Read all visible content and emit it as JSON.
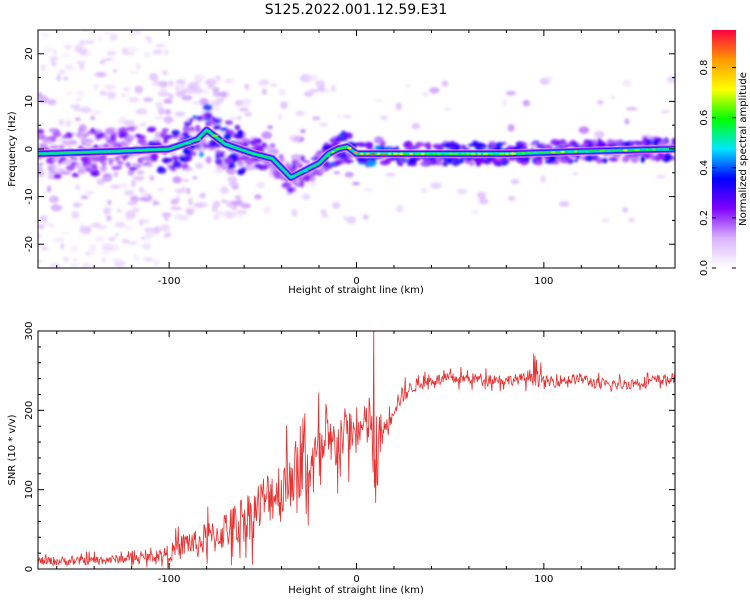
{
  "title": "S125.2022.001.12.59.E31",
  "chart_data": [
    {
      "type": "heatmap",
      "xlabel": "Height of straight line (km)",
      "ylabel": "Frequency (Hz)",
      "xlim": [
        -170,
        170
      ],
      "ylim": [
        -25,
        25
      ],
      "xticks": [
        -100,
        0,
        100
      ],
      "yticks": [
        -20,
        -10,
        0,
        10,
        20
      ],
      "colorbar": {
        "label": "Normalized spectral amplitude",
        "range": [
          0,
          0.95
        ],
        "ticks": [
          0.0,
          0.2,
          0.4,
          0.6,
          0.8
        ],
        "colors": [
          "#ffffff",
          "#d9b3ff",
          "#8000ff",
          "#0000ff",
          "#00e5ff",
          "#00ff00",
          "#ffff00",
          "#ff9900",
          "#ff0040"
        ]
      },
      "ridge": {
        "x": [
          -170,
          -130,
          -100,
          -85,
          -80,
          -70,
          -55,
          -45,
          -40,
          -35,
          -30,
          -25,
          -20,
          -15,
          -10,
          -5,
          0,
          10,
          20,
          40,
          80,
          120,
          170
        ],
        "y": [
          -1,
          -0.5,
          0,
          2,
          4,
          1,
          -1,
          -2,
          -4,
          -6,
          -5,
          -4,
          -3,
          -1,
          0,
          0.5,
          -1,
          -1,
          -1,
          -1,
          -1,
          -0.5,
          0
        ],
        "peak_amplitude": [
          0.3,
          0.35,
          0.45,
          0.55,
          0.6,
          0.5,
          0.5,
          0.45,
          0.4,
          0.45,
          0.45,
          0.45,
          0.5,
          0.6,
          0.7,
          0.7,
          0.75,
          0.8,
          0.7,
          0.65,
          0.65,
          0.6,
          0.6
        ]
      }
    },
    {
      "type": "line",
      "xlabel": "Height of straight line (km)",
      "ylabel": "SNR (10 * v/v)",
      "xlim": [
        -170,
        170
      ],
      "ylim": [
        0,
        300
      ],
      "xticks": [
        -100,
        0,
        100
      ],
      "yticks": [
        0,
        100,
        200,
        300
      ],
      "color": "#e83030",
      "series": [
        {
          "x": [
            -170,
            -150,
            -130,
            -110,
            -100,
            -95,
            -90,
            -85,
            -80,
            -75,
            -70,
            -65,
            -60,
            -55,
            -50,
            -45,
            -40,
            -35,
            -30,
            -25,
            -20,
            -15,
            -10,
            -5,
            0,
            5,
            8,
            10,
            12,
            15,
            20,
            25,
            30,
            40,
            50,
            60,
            70,
            80,
            90,
            95,
            100,
            110,
            120,
            130,
            140,
            150,
            160,
            170
          ],
          "y": [
            10,
            10,
            12,
            15,
            20,
            25,
            35,
            30,
            40,
            40,
            50,
            55,
            65,
            70,
            85,
            95,
            100,
            120,
            125,
            130,
            140,
            150,
            160,
            175,
            170,
            180,
            190,
            90,
            170,
            175,
            205,
            220,
            230,
            238,
            240,
            240,
            240,
            238,
            240,
            245,
            235,
            238,
            240,
            232,
            232,
            235,
            238,
            240
          ],
          "noise": [
            8,
            8,
            8,
            8,
            15,
            20,
            25,
            25,
            30,
            30,
            35,
            40,
            45,
            45,
            50,
            50,
            60,
            60,
            60,
            60,
            60,
            55,
            50,
            45,
            40,
            40,
            60,
            80,
            40,
            30,
            20,
            15,
            12,
            10,
            10,
            10,
            10,
            10,
            10,
            20,
            12,
            10,
            10,
            10,
            10,
            10,
            10,
            10
          ]
        }
      ]
    }
  ]
}
